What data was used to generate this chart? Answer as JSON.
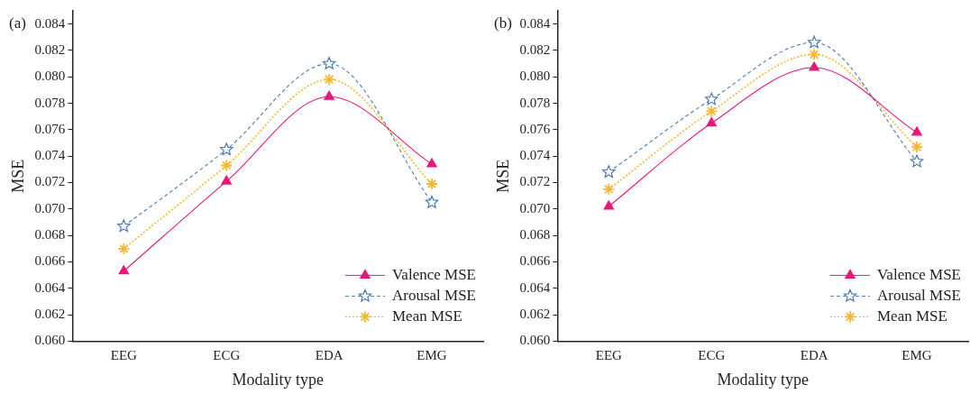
{
  "chart_data": [
    {
      "type": "line",
      "title": "(a)",
      "xlabel": "Modality type",
      "ylabel": "MSE",
      "categories": [
        "EEG",
        "ECG",
        "EDA",
        "EMG"
      ],
      "series": [
        {
          "name": "Valence MSE",
          "color": "#e8177a",
          "marker": "triangle",
          "line_style": "solid",
          "values": [
            0.0653,
            0.0721,
            0.0785,
            0.0734
          ]
        },
        {
          "name": "Arousal MSE",
          "color": "#4a7ab5",
          "marker": "star",
          "line_style": "dashed",
          "values": [
            0.0687,
            0.0745,
            0.081,
            0.0705
          ]
        },
        {
          "name": "Mean MSE",
          "color": "#f5b82e",
          "marker": "cross",
          "line_style": "dotted",
          "values": [
            0.067,
            0.0733,
            0.0798,
            0.0719
          ]
        }
      ],
      "ylim": [
        0.06,
        0.085
      ],
      "yticks": [
        {
          "value": 0.06,
          "label": "0.060"
        },
        0.062,
        0.064,
        0.066,
        0.068,
        {
          "value": 0.07,
          "label": "0.070"
        },
        0.072,
        0.074,
        0.076,
        0.078,
        {
          "value": 0.08,
          "label": "0.080"
        },
        0.082,
        0.084
      ],
      "grid": false,
      "legend": "bottom right"
    },
    {
      "type": "line",
      "title": "(b)",
      "xlabel": "Modality type",
      "ylabel": "MSE",
      "categories": [
        "EEG",
        "ECG",
        "EDA",
        "EMG"
      ],
      "series": [
        {
          "name": "Valence MSE",
          "color": "#e8177a",
          "marker": "triangle",
          "line_style": "solid",
          "values": [
            0.0702,
            0.0765,
            0.0807,
            0.0758
          ]
        },
        {
          "name": "Arousal MSE",
          "color": "#4a7ab5",
          "marker": "star",
          "line_style": "dashed",
          "values": [
            0.0728,
            0.0783,
            0.0826,
            0.0736
          ]
        },
        {
          "name": "Mean MSE",
          "color": "#f5b82e",
          "marker": "cross",
          "line_style": "dotted",
          "values": [
            0.0715,
            0.0774,
            0.0817,
            0.0747
          ]
        }
      ],
      "ylim": [
        0.06,
        0.085
      ],
      "yticks": [
        {
          "value": 0.06,
          "label": "0.060"
        },
        0.062,
        0.064,
        0.066,
        0.068,
        {
          "value": 0.07,
          "label": "0.070"
        },
        0.072,
        0.074,
        0.076,
        0.078,
        {
          "value": 0.08,
          "label": "0.080"
        },
        0.082,
        0.084
      ],
      "grid": false,
      "legend": "bottom right"
    }
  ]
}
